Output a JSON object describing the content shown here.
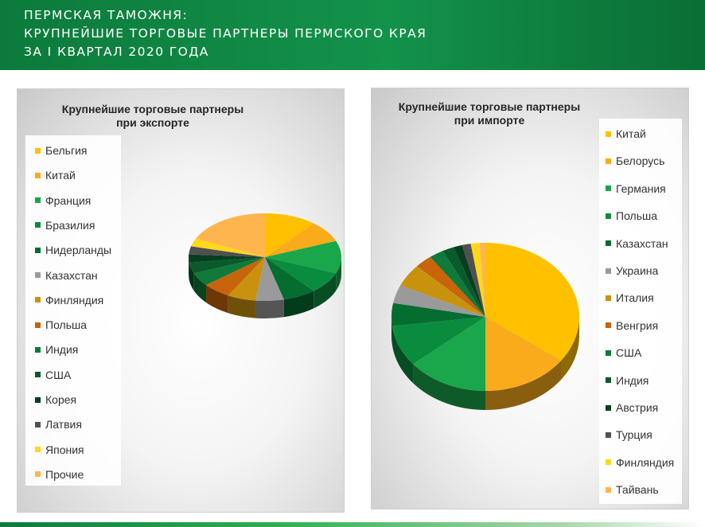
{
  "header": {
    "line1": "Пермская таможня:",
    "line2": "Крупнейшие торговые партнеры Пермского края",
    "line3": " за I квартал 2020 года"
  },
  "colors": {
    "header_green": "#13924a",
    "side": "#5a4a1e"
  },
  "chart_data": [
    {
      "type": "pie",
      "title": "Крупнейшие торговые партнеры при экспорте",
      "title_lines": [
        "Крупнейшие торговые партнеры",
        "при экспорте"
      ],
      "legend_position": "left",
      "start_angle_deg": 0,
      "slices": [
        {
          "label": "Бельгия",
          "value": 11,
          "color": "#ffc000"
        },
        {
          "label": "Китай",
          "value": 8,
          "color": "#f9ab1b"
        },
        {
          "label": "Франция",
          "value": 12,
          "color": "#1aa64a"
        },
        {
          "label": "Бразилия",
          "value": 8,
          "color": "#0a8c3e"
        },
        {
          "label": "Нидерланды",
          "value": 7,
          "color": "#046d2f"
        },
        {
          "label": "Казахстан",
          "value": 6,
          "color": "#9a9a9a"
        },
        {
          "label": "Финляндия",
          "value": 6,
          "color": "#c8920e"
        },
        {
          "label": "Польша",
          "value": 6,
          "color": "#c8640a"
        },
        {
          "label": "Индия",
          "value": 5,
          "color": "#0f7a3a"
        },
        {
          "label": "США",
          "value": 4,
          "color": "#0a5a2c"
        },
        {
          "label": "Корея",
          "value": 3,
          "color": "#063f1f"
        },
        {
          "label": "Латвия",
          "value": 3,
          "color": "#505050"
        },
        {
          "label": "Япония",
          "value": 3,
          "color": "#ffd81a"
        },
        {
          "label": "Прочие",
          "value": 18,
          "color": "#ffb54d"
        }
      ]
    },
    {
      "type": "pie",
      "title": "Крупнейшие торговые партнеры при импорте",
      "title_lines": [
        "Крупнейшие торговые партнеры",
        "при импорте"
      ],
      "legend_position": "right",
      "start_angle_deg": 0,
      "slices": [
        {
          "label": "Китай",
          "value": 35,
          "color": "#ffc000"
        },
        {
          "label": "Белорусь",
          "value": 15,
          "color": "#f9ab1b"
        },
        {
          "label": "Германия",
          "value": 14,
          "color": "#1aa64a"
        },
        {
          "label": "Польша",
          "value": 9,
          "color": "#0a8c3e"
        },
        {
          "label": "Казахстан",
          "value": 5,
          "color": "#046d2f"
        },
        {
          "label": "Украина",
          "value": 4,
          "color": "#9a9a9a"
        },
        {
          "label": "Италия",
          "value": 5,
          "color": "#c8920e"
        },
        {
          "label": "Венгрия",
          "value": 3,
          "color": "#c8640a"
        },
        {
          "label": "США",
          "value": 2.5,
          "color": "#0f7a3a"
        },
        {
          "label": "Индия",
          "value": 2,
          "color": "#0a5a2c"
        },
        {
          "label": "Австрия",
          "value": 1.5,
          "color": "#063f1f"
        },
        {
          "label": "Турция",
          "value": 1.5,
          "color": "#505050"
        },
        {
          "label": "Финляндия",
          "value": 1.5,
          "color": "#ffd81a"
        },
        {
          "label": "Тайвань",
          "value": 1,
          "color": "#ffb54d"
        }
      ]
    }
  ]
}
